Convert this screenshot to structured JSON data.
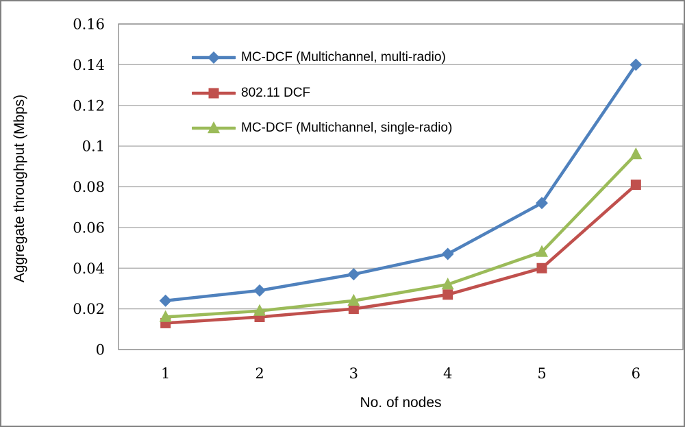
{
  "chart_data": {
    "type": "line",
    "title": "",
    "xlabel": "No. of nodes",
    "ylabel": "Aggregate throughput (Mbps)",
    "categories": [
      "1",
      "2",
      "3",
      "4",
      "5",
      "6"
    ],
    "y_ticks": [
      "0",
      "0.02",
      "0.04",
      "0.06",
      "0.08",
      "0.1",
      "0.12",
      "0.14",
      "0.16"
    ],
    "ylim": [
      0,
      0.16
    ],
    "grid": "horizontal",
    "legend_position": "inside-top-center-left",
    "series": [
      {
        "name": "MC-DCF (Multichannel, multi-radio)",
        "marker": "diamond",
        "color": "#4F81BD",
        "values": [
          0.024,
          0.029,
          0.037,
          0.047,
          0.072,
          0.14
        ]
      },
      {
        "name": "802.11 DCF",
        "marker": "square",
        "color": "#C0504D",
        "values": [
          0.013,
          0.016,
          0.02,
          0.027,
          0.04,
          0.081
        ]
      },
      {
        "name": "MC-DCF (Multichannel, single-radio)",
        "marker": "triangle",
        "color": "#9BBB59",
        "values": [
          0.016,
          0.019,
          0.024,
          0.032,
          0.048,
          0.096
        ]
      }
    ]
  },
  "colors": {
    "grid": "#A6A6A6",
    "axis": "#8C8C8C",
    "figure_border": "#7F7F7F",
    "text": "#000000",
    "background": "#FFFFFF"
  }
}
